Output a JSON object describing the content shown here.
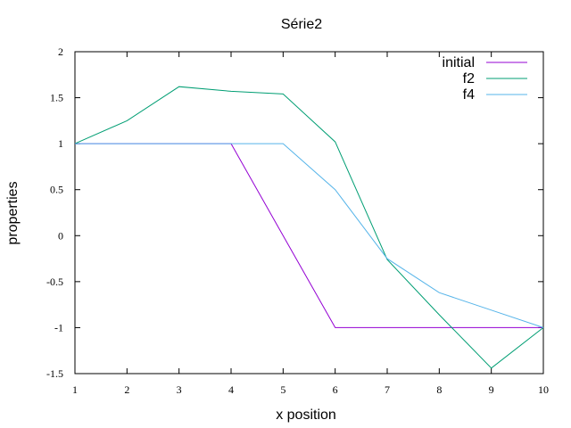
{
  "chart_data": {
    "type": "line",
    "title": "Série2",
    "xlabel": "x position",
    "ylabel": "properties",
    "xlim": [
      1,
      10
    ],
    "ylim": [
      -1.5,
      2
    ],
    "xticks": [
      1,
      2,
      3,
      4,
      5,
      6,
      7,
      8,
      9,
      10
    ],
    "yticks": [
      -1.5,
      -1,
      -0.5,
      0,
      0.5,
      1,
      1.5,
      2
    ],
    "xtick_labels": [
      "1",
      "2",
      "3",
      "4",
      "5",
      "6",
      "7",
      "8",
      "9",
      "10"
    ],
    "ytick_labels": [
      "-1.5",
      "-1",
      "-0.5",
      "0",
      "0.5",
      "1",
      "1.5",
      "2"
    ],
    "grid": false,
    "legend_position": "top-right",
    "series": [
      {
        "name": "initial",
        "color": "#9400d3",
        "x": [
          1,
          2,
          3,
          4,
          5,
          6,
          7,
          8,
          9,
          10
        ],
        "y": [
          1,
          1,
          1,
          1,
          0,
          -1,
          -1,
          -1,
          -1,
          -1
        ]
      },
      {
        "name": "f2",
        "color": "#009e73",
        "x": [
          1,
          2,
          3,
          4,
          5,
          6,
          7,
          8,
          9,
          10
        ],
        "y": [
          1,
          1.25,
          1.62,
          1.57,
          1.54,
          1.02,
          -0.26,
          -0.86,
          -1.44,
          -1
        ]
      },
      {
        "name": "f4",
        "color": "#56b4e9",
        "x": [
          1,
          2,
          3,
          4,
          5,
          6,
          7,
          8,
          9,
          10
        ],
        "y": [
          1,
          1,
          1,
          1,
          1,
          0.5,
          -0.25,
          -0.62,
          -0.81,
          -1
        ]
      }
    ]
  }
}
